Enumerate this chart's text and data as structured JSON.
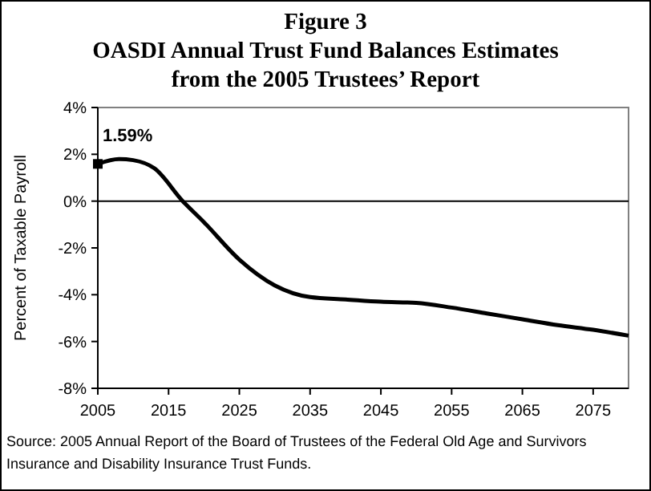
{
  "chart_data": {
    "type": "line",
    "title": "Figure 3\nOASDI Annual Trust Fund Balances Estimates\nfrom the 2005 Trustees’ Report",
    "ylabel": "Percent of Taxable Payroll",
    "xlim": [
      2005,
      2080
    ],
    "xticks": [
      2005,
      2015,
      2025,
      2035,
      2045,
      2055,
      2065,
      2075
    ],
    "ylim": [
      -8,
      4
    ],
    "yticks": [
      {
        "value": -8,
        "label": "-8%"
      },
      {
        "value": -6,
        "label": "-6%"
      },
      {
        "value": -4,
        "label": "-4%"
      },
      {
        "value": -2,
        "label": "-2%"
      },
      {
        "value": 0,
        "label": "0%"
      },
      {
        "value": 2,
        "label": "2%"
      },
      {
        "value": 4,
        "label": "4%"
      }
    ],
    "grid": false,
    "ref_lines": [
      {
        "axis": "y",
        "value": 0,
        "color": "#000000"
      }
    ],
    "series": [
      {
        "color": "#000000",
        "marker": "none",
        "x": [
          2005,
          2008,
          2010,
          2013,
          2017,
          2020,
          2025,
          2030,
          2035,
          2040,
          2045,
          2050,
          2055,
          2060,
          2065,
          2070,
          2075,
          2080
        ],
        "values": [
          1.59,
          1.8,
          1.75,
          1.4,
          0,
          -0.9,
          -2.5,
          -3.6,
          -4.1,
          -4.2,
          -4.3,
          -4.35,
          -4.55,
          -4.8,
          -5.05,
          -5.3,
          -5.5,
          -5.75
        ]
      },
      {
        "type": "scatter",
        "color": "#000000",
        "marker": "square",
        "x": [
          2005
        ],
        "values": [
          1.59
        ]
      }
    ],
    "annotations": [
      {
        "text": "1.59%",
        "x": 2005,
        "y": 1.59
      },
      "Source: 2005 Annual Report of the Board of Trustees of the Federal Old Age and Survivors\nInsurance and Disability Insurance Trust Funds."
    ]
  }
}
